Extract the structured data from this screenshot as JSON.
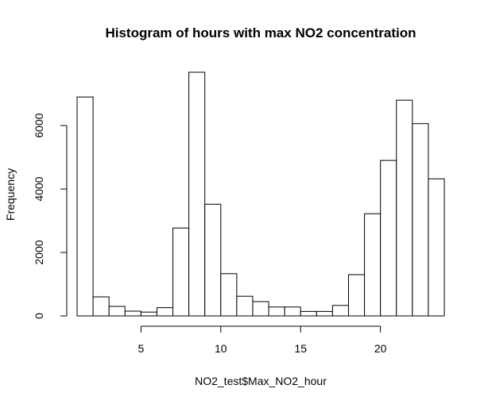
{
  "chart_data": {
    "type": "bar",
    "title": "Histogram of hours with max NO2 concentration",
    "xlabel": "NO2_test$Max_NO2_hour",
    "ylabel": "Frequency",
    "bin_edges": [
      1,
      2,
      3,
      4,
      5,
      6,
      7,
      8,
      9,
      10,
      11,
      12,
      13,
      14,
      15,
      16,
      17,
      18,
      19,
      20,
      21,
      22,
      23,
      24
    ],
    "values": [
      6900,
      600,
      300,
      150,
      120,
      260,
      2770,
      7680,
      3520,
      1330,
      620,
      450,
      280,
      280,
      140,
      140,
      330,
      1300,
      3220,
      4900,
      6800,
      6060,
      4320
    ],
    "xlim": [
      1,
      24
    ],
    "ylim": [
      0,
      7680
    ],
    "x_ticks": [
      5,
      10,
      15,
      20
    ],
    "y_ticks": [
      0,
      2000,
      4000,
      6000
    ],
    "x_tick_labels": [
      "5",
      "10",
      "15",
      "20"
    ],
    "y_tick_labels": [
      "0",
      "2000",
      "4000",
      "6000"
    ],
    "bar_fill": "#ffffff",
    "bar_stroke": "#000000",
    "grid": false
  }
}
